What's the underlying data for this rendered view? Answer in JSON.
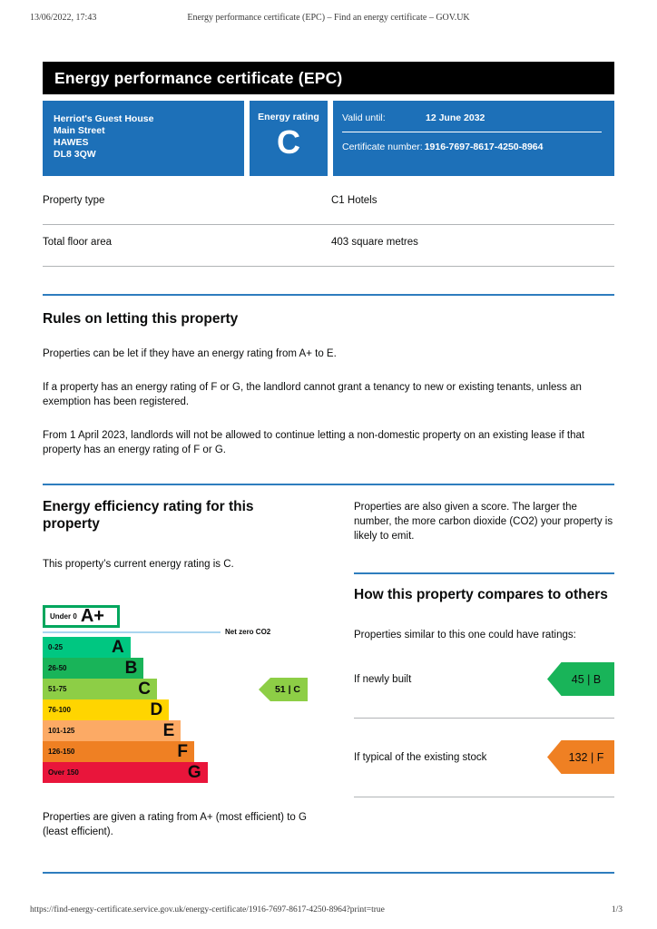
{
  "print_header": {
    "datetime": "13/06/2022, 17:43",
    "title": "Energy performance certificate (EPC) – Find an energy certificate – GOV.UK"
  },
  "banner": {
    "title": "Energy performance certificate (EPC)"
  },
  "certificate": {
    "accent_color": "#1d70b8",
    "address_lines": [
      "Herriot's Guest House",
      "Main Street",
      "HAWES",
      "DL8 3QW"
    ],
    "energy_rating_label": "Energy rating",
    "energy_rating": "C",
    "valid_until_label": "Valid until:",
    "valid_until_value": "12 June 2032",
    "certificate_number_label": "Certificate number:",
    "certificate_number_value": "1916-7697-8617-4250-8964"
  },
  "property_details": {
    "rows": [
      {
        "label": "Property type",
        "value": "C1 Hotels"
      },
      {
        "label": "Total floor area",
        "value": "403 square metres"
      }
    ]
  },
  "rules_section": {
    "heading": "Rules on letting this property",
    "paragraphs": [
      "Properties can be let if they have an energy rating from A+ to E.",
      "If a property has an energy rating of F or G, the landlord cannot grant a tenancy to new or existing tenants, unless an exemption has been registered.",
      "From 1 April 2023, landlords will not be allowed to continue letting a non-domestic property on an existing lease if that property has an energy rating of F or G."
    ]
  },
  "efficiency_section": {
    "heading": "Energy efficiency rating for this property",
    "current_rating_text": "This property’s current energy rating is C.",
    "footnote": "Properties are given a rating from A+ (most efficient) to G (least efficient)."
  },
  "score_section": {
    "note": "Properties are also given a score. The larger the number, the more carbon dioxide (CO2) your property is likely to emit."
  },
  "compare_section": {
    "heading": "How this property compares to others",
    "intro": "Properties similar to this one could have ratings:",
    "rows": [
      {
        "label": "If newly built",
        "rating_label": "45 | B",
        "color": "#19b459"
      },
      {
        "label": "If typical of the existing stock",
        "rating_label": "132 | F",
        "color": "#ef8023"
      }
    ]
  },
  "chart_data": {
    "type": "bar",
    "title": "Energy efficiency rating for this property",
    "net_zero_label": "Net zero CO2",
    "bands": [
      {
        "band": "A+",
        "range": "Under 0",
        "color": "#ffffff",
        "border_color": "#00a65d"
      },
      {
        "band": "A",
        "range": "0-25",
        "color": "#00c781"
      },
      {
        "band": "B",
        "range": "26-50",
        "color": "#19b459"
      },
      {
        "band": "C",
        "range": "51-75",
        "color": "#8dce46"
      },
      {
        "band": "D",
        "range": "76-100",
        "color": "#ffd500"
      },
      {
        "band": "E",
        "range": "101-125",
        "color": "#fcaa65"
      },
      {
        "band": "F",
        "range": "126-150",
        "color": "#ef8023"
      },
      {
        "band": "G",
        "range": "Over 150",
        "color": "#e9153b"
      }
    ],
    "current_rating": {
      "score": 51,
      "band": "C",
      "label": "51 | C",
      "color": "#8dce46"
    }
  },
  "print_footer": {
    "url": "https://find-energy-certificate.service.gov.uk/energy-certificate/1916-7697-8617-4250-8964?print=true",
    "page": "1/3"
  }
}
